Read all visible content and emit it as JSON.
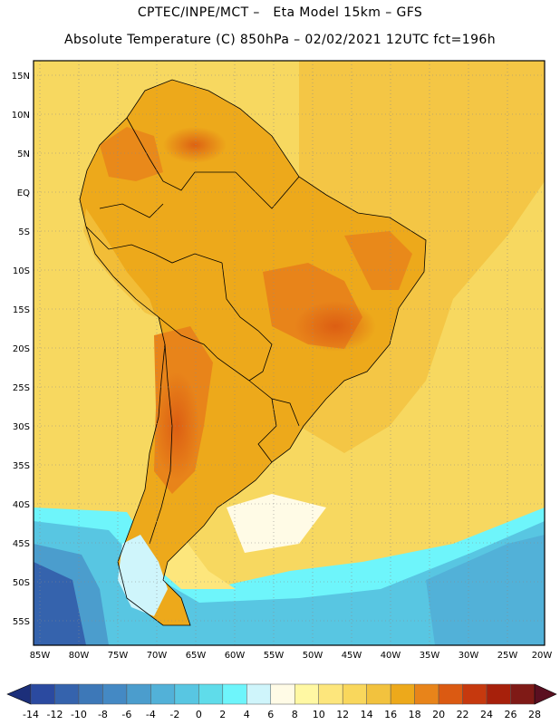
{
  "header": {
    "line1": "CPTEC/INPE/MCT –   Eta Model 15km – GFS",
    "line2": "Absolute Temperature (C) 850hPa – 02/02/2021 12UTC fct=196h"
  },
  "map": {
    "region": "South America",
    "lat_labels": [
      "15N",
      "10N",
      "5N",
      "EQ",
      "5S",
      "10S",
      "15S",
      "20S",
      "25S",
      "30S",
      "35S",
      "40S",
      "45S",
      "50S",
      "55S"
    ],
    "lon_labels": [
      "85W",
      "80W",
      "75W",
      "70W",
      "65W",
      "60W",
      "55W",
      "50W",
      "45W",
      "40W",
      "35W",
      "30W",
      "25W",
      "20W"
    ]
  },
  "colorbar": {
    "unit": "C",
    "tick_labels": [
      "-14",
      "-12",
      "-10",
      "-8",
      "-6",
      "-4",
      "-2",
      "0",
      "2",
      "4",
      "6",
      "8",
      "10",
      "12",
      "14",
      "16",
      "18",
      "20",
      "22",
      "24",
      "26",
      "28"
    ],
    "colors": [
      "#2b4aa0",
      "#3563ad",
      "#3d78b8",
      "#4489c4",
      "#4b9dcd",
      "#52b1d8",
      "#58c6e2",
      "#5fdcea",
      "#6ef5fb",
      "#cff5fb",
      "#fffbe6",
      "#fff8a3",
      "#fde67c",
      "#f9d75c",
      "#f2c23e",
      "#eda91b",
      "#e8841a",
      "#db5a12",
      "#c6390e",
      "#a7200b",
      "#7f1a16"
    ],
    "low_arrow_color": "#1c2f7a",
    "high_arrow_color": "#5a0f20"
  },
  "palette": {
    "ocean_warm": "#f7d860",
    "land_warm": "#eda91b",
    "land_hot": "#e8841a",
    "cold_ocean": "#58c6e2",
    "coldest": "#2b4aa0"
  }
}
